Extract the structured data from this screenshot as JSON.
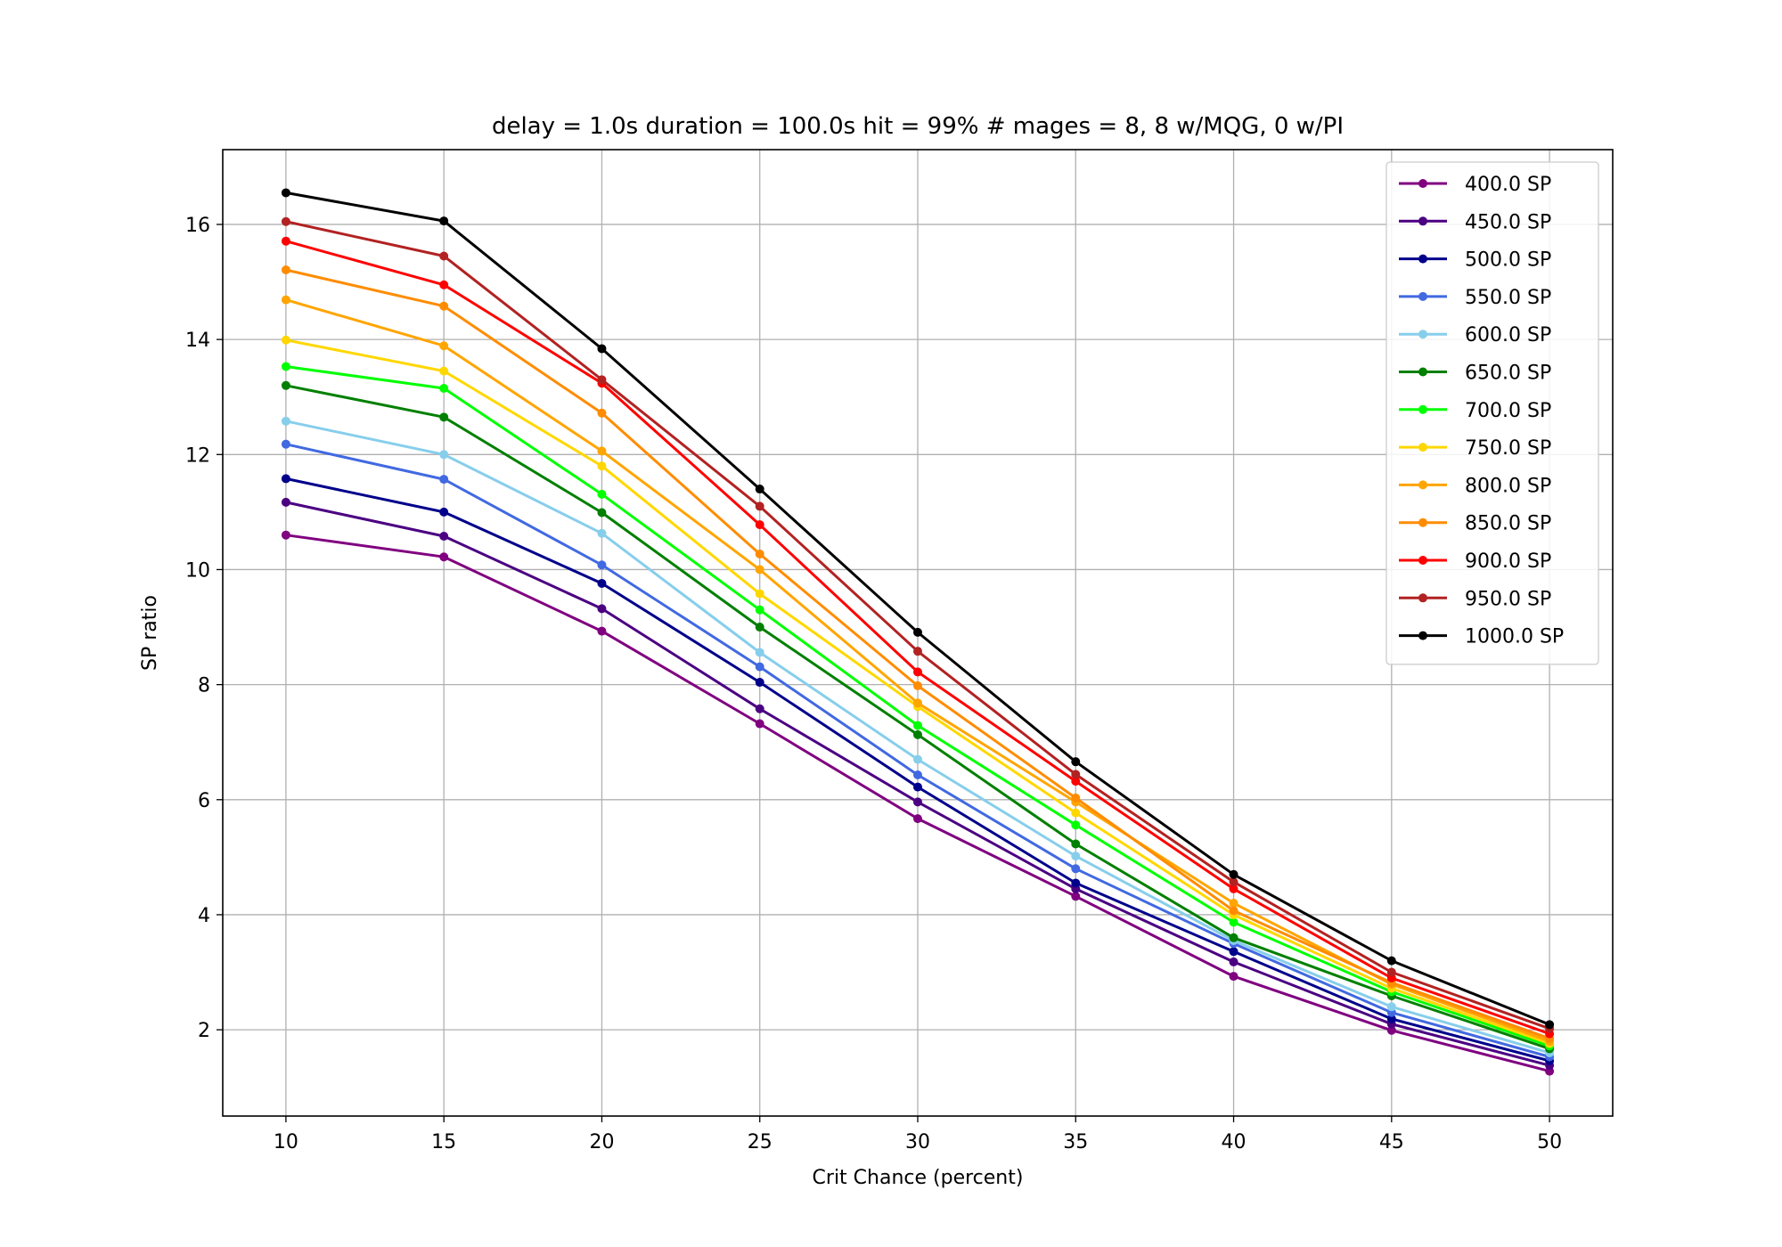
{
  "chart_data": {
    "type": "line",
    "title": "delay = 1.0s duration = 100.0s hit = 99% # mages = 8, 8 w/MQG, 0 w/PI",
    "xlabel": "Crit Chance (percent)",
    "ylabel": "SP ratio",
    "x": [
      10,
      15,
      20,
      25,
      30,
      35,
      40,
      45,
      50
    ],
    "xlim": [
      8,
      52
    ],
    "ylim": [
      0.5,
      17.3
    ],
    "xticks": [
      10,
      15,
      20,
      25,
      30,
      35,
      40,
      45,
      50
    ],
    "yticks": [
      2,
      4,
      6,
      8,
      10,
      12,
      14,
      16
    ],
    "grid": true,
    "legend_position": "top-right",
    "series": [
      {
        "name": "400.0 SP",
        "color": "#800080",
        "values": [
          10.6,
          10.22,
          8.93,
          7.32,
          5.67,
          4.32,
          2.93,
          1.99,
          1.28
        ]
      },
      {
        "name": "450.0 SP",
        "color": "#4b0082",
        "values": [
          11.17,
          10.58,
          9.32,
          7.58,
          5.96,
          4.45,
          3.18,
          2.1,
          1.38
        ]
      },
      {
        "name": "500.0 SP",
        "color": "#00008b",
        "values": [
          11.58,
          11.0,
          9.76,
          8.04,
          6.22,
          4.55,
          3.36,
          2.19,
          1.46
        ]
      },
      {
        "name": "550.0 SP",
        "color": "#4169e1",
        "values": [
          12.18,
          11.57,
          10.08,
          8.31,
          6.43,
          4.8,
          3.5,
          2.3,
          1.53
        ]
      },
      {
        "name": "600.0 SP",
        "color": "#87ceeb",
        "values": [
          12.58,
          12.0,
          10.63,
          8.56,
          6.7,
          5.02,
          3.55,
          2.4,
          1.6
        ]
      },
      {
        "name": "650.0 SP",
        "color": "#008000",
        "values": [
          13.2,
          12.65,
          10.99,
          9.0,
          7.13,
          5.23,
          3.6,
          2.59,
          1.67
        ]
      },
      {
        "name": "700.0 SP",
        "color": "#00ff00",
        "values": [
          13.53,
          13.15,
          11.31,
          9.3,
          7.29,
          5.56,
          3.87,
          2.66,
          1.72
        ]
      },
      {
        "name": "750.0 SP",
        "color": "#ffd700",
        "values": [
          13.99,
          13.45,
          11.8,
          9.58,
          7.62,
          5.77,
          4.0,
          2.72,
          1.76
        ]
      },
      {
        "name": "800.0 SP",
        "color": "#ffa500",
        "values": [
          14.69,
          13.89,
          12.06,
          10.0,
          7.68,
          5.96,
          4.2,
          2.79,
          1.8
        ]
      },
      {
        "name": "850.0 SP",
        "color": "#ff8c00",
        "values": [
          15.21,
          14.58,
          12.72,
          10.27,
          7.98,
          6.03,
          4.07,
          2.82,
          1.85
        ]
      },
      {
        "name": "900.0 SP",
        "color": "#ff0000",
        "values": [
          15.71,
          14.95,
          13.24,
          10.78,
          8.22,
          6.32,
          4.45,
          2.9,
          1.93
        ]
      },
      {
        "name": "950.0 SP",
        "color": "#b22222",
        "values": [
          16.05,
          15.45,
          13.3,
          11.1,
          8.58,
          6.44,
          4.57,
          3.0,
          2.02
        ]
      },
      {
        "name": "1000.0 SP",
        "color": "#000000",
        "values": [
          16.55,
          16.06,
          13.84,
          11.4,
          8.91,
          6.66,
          4.7,
          3.2,
          2.09
        ]
      }
    ]
  }
}
